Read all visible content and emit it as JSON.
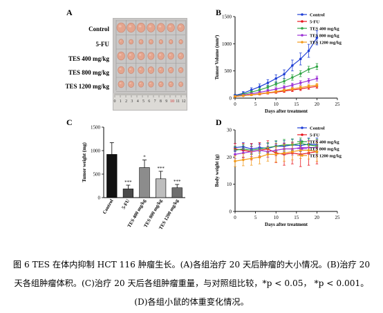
{
  "panels": {
    "A": {
      "letter": "A",
      "rows": [
        "Control",
        "5-FU",
        "TES 400 mg/kg",
        "TES 800 mg/kg",
        "TES 1200 mg/kg"
      ],
      "ruler_numbers": [
        "0",
        "1",
        "2",
        "3",
        "4",
        "5",
        "6",
        "7",
        "8",
        "9",
        "10",
        "11",
        "12"
      ],
      "tumor_color": "#e4a58e",
      "tumor_edge": "#c9826c",
      "tumor_sizes": [
        [
          1.0,
          0.95,
          0.95,
          0.9,
          0.9,
          0.85,
          0.8
        ],
        [
          0.55,
          0.5,
          0.5,
          0.5,
          0.45,
          0.45,
          0.45
        ],
        [
          0.85,
          0.8,
          0.8,
          0.75,
          0.75,
          0.7,
          0.65
        ],
        [
          0.75,
          0.7,
          0.7,
          0.7,
          0.65,
          0.6,
          0.55
        ],
        [
          0.7,
          0.65,
          0.6,
          0.6,
          0.55,
          0.55,
          0.5
        ]
      ]
    },
    "B": {
      "letter": "B"
    },
    "C": {
      "letter": "C"
    },
    "D": {
      "letter": "D"
    }
  },
  "chart_data": [
    {
      "id": "B",
      "type": "line",
      "xlabel": "Days after treatment",
      "ylabel": "Tumor Volume (mm³)",
      "xlim": [
        0,
        25
      ],
      "xticks": [
        0,
        5,
        10,
        15,
        20,
        25
      ],
      "ylim": [
        0,
        1500
      ],
      "yticks": [
        0,
        500,
        1000,
        1500
      ],
      "x": [
        0,
        2,
        4,
        6,
        8,
        10,
        12,
        14,
        16,
        18,
        20
      ],
      "legend": "top-right",
      "series": [
        {
          "name": "Control",
          "color": "#1f3fd6",
          "values": [
            50,
            90,
            150,
            210,
            280,
            360,
            440,
            600,
            720,
            870,
            1110
          ],
          "err": [
            20,
            30,
            40,
            50,
            60,
            70,
            80,
            100,
            110,
            120,
            130
          ]
        },
        {
          "name": "5-FU",
          "color": "#e8141c",
          "values": [
            30,
            45,
            60,
            75,
            95,
            110,
            130,
            150,
            170,
            195,
            215
          ],
          "err": [
            10,
            12,
            15,
            18,
            20,
            22,
            25,
            28,
            30,
            32,
            35
          ]
        },
        {
          "name": "TES 400 mg/kg",
          "color": "#2ea544",
          "values": [
            40,
            70,
            110,
            150,
            200,
            260,
            310,
            380,
            450,
            530,
            580
          ],
          "err": [
            15,
            20,
            25,
            30,
            35,
            40,
            45,
            50,
            55,
            55,
            55
          ]
        },
        {
          "name": "TES 800 mg/kg",
          "color": "#9b2fd6",
          "values": [
            35,
            55,
            80,
            105,
            135,
            165,
            200,
            240,
            280,
            320,
            360
          ],
          "err": [
            12,
            15,
            18,
            22,
            25,
            28,
            30,
            35,
            40,
            42,
            45
          ]
        },
        {
          "name": "TES 1200 mg/kg",
          "color": "#f29a1a",
          "values": [
            30,
            45,
            60,
            80,
            100,
            120,
            145,
            170,
            195,
            220,
            240
          ],
          "err": [
            10,
            12,
            14,
            16,
            18,
            20,
            22,
            24,
            26,
            28,
            30
          ]
        }
      ]
    },
    {
      "id": "C",
      "type": "bar",
      "ylabel": "Tumor weight (mg)",
      "ylim": [
        0,
        1500
      ],
      "yticks": [
        0,
        500,
        1000,
        1500
      ],
      "categories": [
        "Control",
        "5-FU",
        "TES 400 mg/kg",
        "TES 800 mg/kg",
        "TES 1200 mg/kg"
      ],
      "values": [
        920,
        185,
        640,
        400,
        210
      ],
      "err": [
        250,
        80,
        160,
        160,
        70
      ],
      "colors": [
        "#111111",
        "#4a4a4a",
        "#8c8c8c",
        "#bdbdbd",
        "#6e6e6e"
      ],
      "significance": [
        "",
        "***",
        "*",
        "***",
        "***"
      ]
    },
    {
      "id": "D",
      "type": "line",
      "xlabel": "Days after treatment",
      "ylabel": "Body weight (g)",
      "xlim": [
        0,
        25
      ],
      "xticks": [
        0,
        5,
        10,
        15,
        20,
        25
      ],
      "ylim": [
        0,
        30
      ],
      "yticks": [
        0,
        10,
        20,
        30
      ],
      "x": [
        0,
        2,
        4,
        6,
        8,
        10,
        12,
        14,
        16,
        18,
        20
      ],
      "legend": "top-right",
      "series": [
        {
          "name": "Control",
          "color": "#1f3fd6",
          "values": [
            23.5,
            23.8,
            23.0,
            23.5,
            23.2,
            24.0,
            24.0,
            24.5,
            24.2,
            24.8,
            24.5
          ],
          "err": [
            1.5,
            1.5,
            1.8,
            1.6,
            1.8,
            1.8,
            2.0,
            2.0,
            2.2,
            2.2,
            2.5
          ]
        },
        {
          "name": "5-FU",
          "color": "#e8141c",
          "values": [
            23.0,
            22.5,
            22.0,
            22.5,
            23.0,
            21.5,
            21.0,
            21.5,
            21.0,
            21.5,
            22.0
          ],
          "err": [
            2.0,
            2.5,
            3.0,
            2.8,
            3.0,
            3.5,
            4.0,
            4.0,
            4.5,
            4.5,
            4.5
          ]
        },
        {
          "name": "TES 400 mg/kg",
          "color": "#2ea544",
          "values": [
            22.5,
            23.0,
            22.5,
            23.0,
            23.5,
            24.0,
            24.5,
            24.5,
            25.0,
            24.5,
            24.0
          ],
          "err": [
            1.5,
            1.5,
            1.5,
            1.6,
            1.8,
            2.0,
            2.0,
            2.2,
            2.0,
            2.2,
            2.5
          ]
        },
        {
          "name": "TES 800 mg/kg",
          "color": "#9b2fd6",
          "values": [
            21.0,
            21.5,
            22.0,
            22.5,
            22.0,
            22.5,
            23.0,
            23.0,
            23.5,
            23.5,
            23.5
          ],
          "err": [
            1.5,
            1.8,
            1.8,
            2.0,
            2.0,
            2.0,
            2.2,
            2.2,
            2.5,
            2.5,
            2.5
          ]
        },
        {
          "name": "TES 1200 mg/kg",
          "color": "#f29a1a",
          "values": [
            18.5,
            19.0,
            19.5,
            20.0,
            21.0,
            21.0,
            21.5,
            22.0,
            22.5,
            22.5,
            22.0
          ],
          "err": [
            2.0,
            2.2,
            2.5,
            2.5,
            2.5,
            2.8,
            3.0,
            3.0,
            3.0,
            3.2,
            3.5
          ]
        }
      ]
    }
  ],
  "caption": {
    "line1": "图 6 TES 在体内抑制 HCT 116 肿瘤生长。(A)各组治疗 20 天后肿瘤的大小情况。(B)治疗 20",
    "line2": "天各组肿瘤体积。(C)治疗 20 天后各组肿瘤重量，与对照组比较，*p < 0.05，  *p < 0.001。",
    "line3": "(D)各组小鼠的体重变化情况。"
  }
}
